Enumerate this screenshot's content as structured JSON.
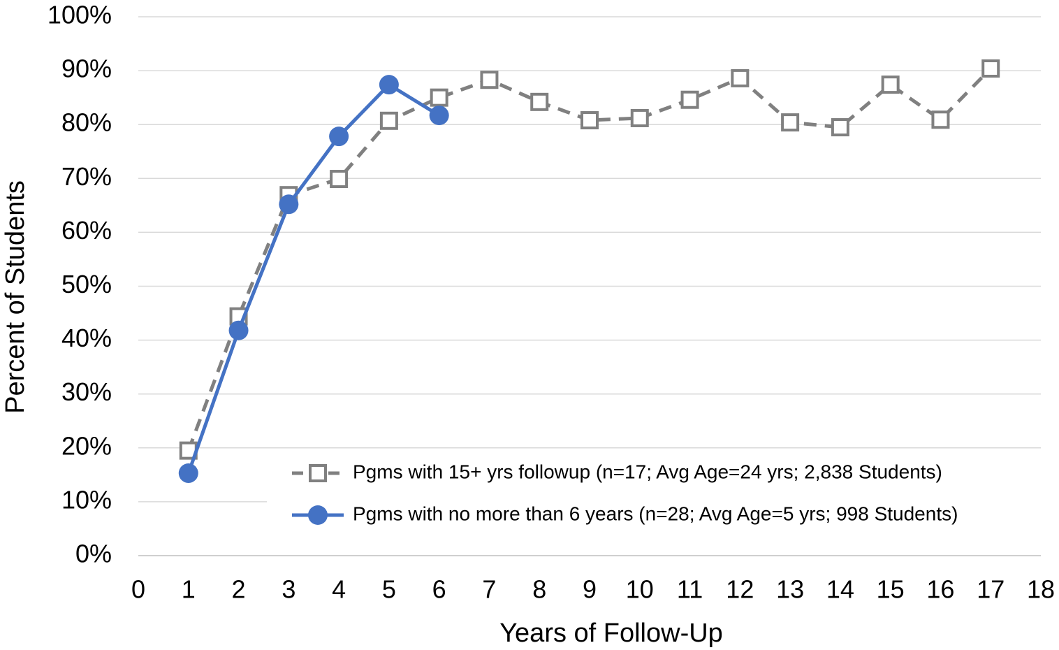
{
  "chart_data": {
    "type": "line",
    "x_label": "Years of Follow-Up",
    "y_label": "Percent of Students",
    "xlim": [
      0,
      18
    ],
    "xticks": [
      0,
      1,
      2,
      3,
      4,
      5,
      6,
      7,
      8,
      9,
      10,
      11,
      12,
      13,
      14,
      15,
      16,
      17,
      18
    ],
    "ylim": [
      0,
      100
    ],
    "yticks": [
      {
        "value": 0,
        "label": "0%"
      },
      {
        "value": 10,
        "label": "10%"
      },
      {
        "value": 20,
        "label": "20%"
      },
      {
        "value": 30,
        "label": "30%"
      },
      {
        "value": 40,
        "label": "40%"
      },
      {
        "value": 50,
        "label": "50%"
      },
      {
        "value": 60,
        "label": "60%"
      },
      {
        "value": 70,
        "label": "70%"
      },
      {
        "value": 80,
        "label": "80%"
      },
      {
        "value": 90,
        "label": "90%"
      },
      {
        "value": 100,
        "label": "100%"
      }
    ],
    "grid": true,
    "legend": "lower right",
    "series": [
      {
        "name": "Pgms with 15+ yrs followup (n=17; Avg Age=24 yrs; 2,838 Students)",
        "color": "#808080",
        "dashed": true,
        "marker": "square",
        "x": [
          1,
          2,
          3,
          4,
          5,
          6,
          7,
          8,
          9,
          10,
          11,
          12,
          13,
          14,
          15,
          16,
          17
        ],
        "values": [
          19.5,
          44.4,
          66.9,
          69.9,
          80.7,
          85.0,
          88.3,
          84.2,
          80.8,
          81.2,
          84.6,
          88.6,
          80.4,
          79.5,
          87.4,
          80.9,
          90.4
        ]
      },
      {
        "name": "Pgms with no more than 6 years (n=28; Avg Age=5 yrs; 998 Students)",
        "color": "#4472c4",
        "dashed": false,
        "marker": "circle",
        "x": [
          1,
          2,
          3,
          4,
          5,
          6
        ],
        "values": [
          15.3,
          41.8,
          65.2,
          77.8,
          87.4,
          81.7
        ]
      }
    ]
  }
}
